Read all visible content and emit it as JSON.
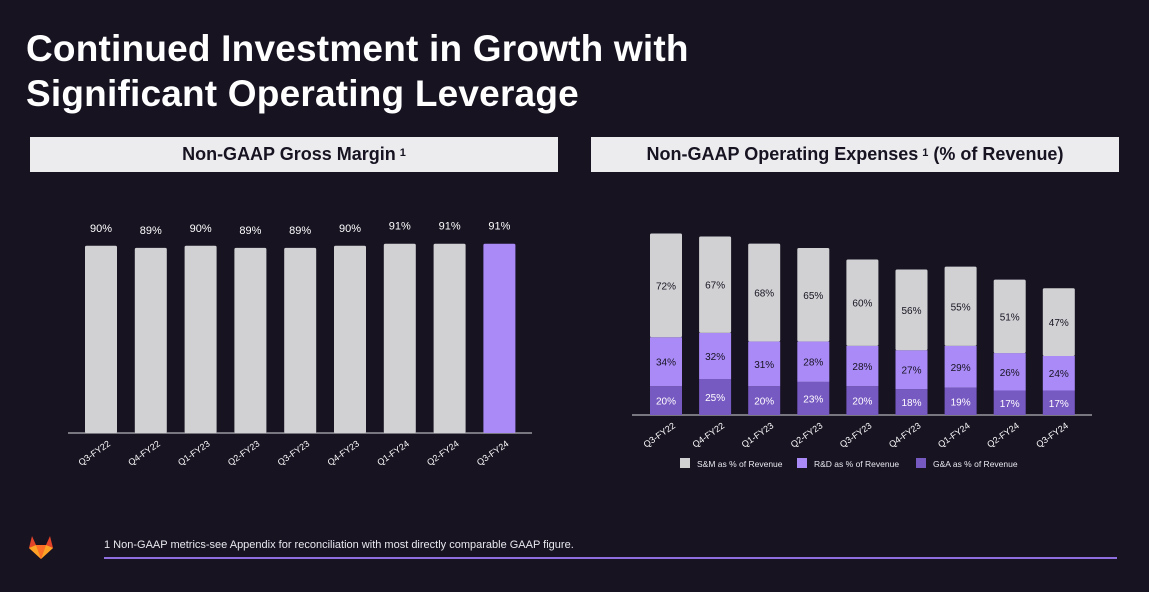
{
  "title_line1": "Continued Investment in Growth with",
  "title_line2": "Significant Operating Leverage",
  "footnote": "1 Non-GAAP metrics-see Appendix for reconciliation with most directly comparable GAAP figure.",
  "logo": "gitlab-logo",
  "colors": {
    "background": "#171321",
    "gray": "#d1d1d3",
    "purple": "#a98af7",
    "dark_purple": "#7759c2",
    "rule": "#8f6fe0"
  },
  "chart_data": [
    {
      "type": "bar",
      "title": "Non-GAAP Gross Margin",
      "title_sup": "1",
      "categories": [
        "Q3-FY22",
        "Q4-FY22",
        "Q1-FY23",
        "Q2-FY23",
        "Q3-FY23",
        "Q4-FY23",
        "Q1-FY24",
        "Q2-FY24",
        "Q3-FY24"
      ],
      "values": [
        90,
        89,
        90,
        89,
        89,
        90,
        91,
        91,
        91
      ],
      "labels": [
        "90%",
        "89%",
        "90%",
        "89%",
        "89%",
        "90%",
        "91%",
        "91%",
        "91%"
      ],
      "highlight_index": 8,
      "ylim": [
        0,
        100
      ],
      "grid": false
    },
    {
      "type": "bar",
      "stacked": true,
      "title": "Non-GAAP Operating Expenses",
      "title_sup": "1",
      "title_suffix": "(% of Revenue)",
      "categories": [
        "Q3-FY22",
        "Q4-FY22",
        "Q1-FY23",
        "Q2-FY23",
        "Q3-FY23",
        "Q4-FY23",
        "Q1-FY24",
        "Q2-FY24",
        "Q3-FY24"
      ],
      "series": [
        {
          "name": "G&A as % of Revenue",
          "color": "#7759c2",
          "values": [
            20,
            25,
            20,
            23,
            20,
            18,
            19,
            17,
            17
          ]
        },
        {
          "name": "R&D as % of Revenue",
          "color": "#a98af7",
          "values": [
            34,
            32,
            31,
            28,
            28,
            27,
            29,
            26,
            24
          ]
        },
        {
          "name": "S&M as % of Revenue",
          "color": "#d1d1d3",
          "values": [
            72,
            67,
            68,
            65,
            60,
            56,
            55,
            51,
            47
          ]
        }
      ],
      "legend_order": [
        "S&M as % of Revenue",
        "R&D as % of Revenue",
        "G&A as % of Revenue"
      ],
      "legend_placement": "bottom",
      "grid": false
    }
  ]
}
